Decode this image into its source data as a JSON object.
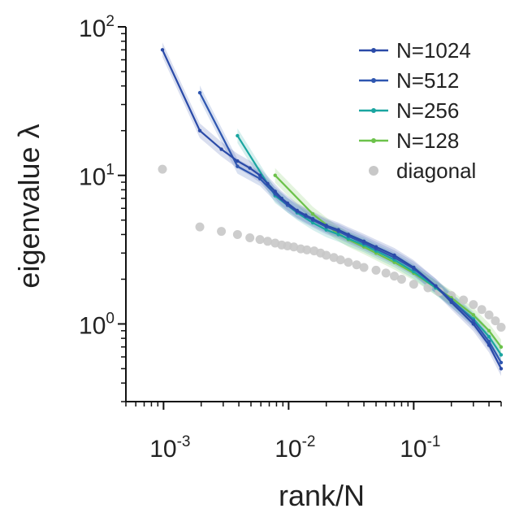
{
  "chart_data": {
    "type": "line",
    "xscale": "log",
    "yscale": "log",
    "xlabel": "rank/N",
    "ylabel": "eigenvalue λ",
    "xlim": [
      0.0005,
      0.5
    ],
    "ylim": [
      0.3,
      100
    ],
    "x_ticks": [
      {
        "value": 0.001,
        "base": "10",
        "exp": "-3"
      },
      {
        "value": 0.01,
        "base": "10",
        "exp": "-2"
      },
      {
        "value": 0.1,
        "base": "10",
        "exp": "-1"
      }
    ],
    "y_ticks": [
      {
        "value": 1,
        "base": "10",
        "exp": "0"
      },
      {
        "value": 10,
        "base": "10",
        "exp": "1"
      },
      {
        "value": 100,
        "base": "10",
        "exp": "2"
      }
    ],
    "legend_position": "top-right",
    "series": [
      {
        "name": "N=1024",
        "color": "#2a4aa8",
        "kind": "line",
        "points": [
          [
            0.00098,
            70
          ],
          [
            0.00195,
            20
          ],
          [
            0.0029,
            15
          ],
          [
            0.0039,
            12.5
          ],
          [
            0.0049,
            11.2
          ],
          [
            0.0059,
            10
          ],
          [
            0.0068,
            8.8
          ],
          [
            0.0078,
            7.8
          ],
          [
            0.0088,
            7
          ],
          [
            0.0098,
            6.5
          ],
          [
            0.0117,
            5.8
          ],
          [
            0.0137,
            5.4
          ],
          [
            0.0156,
            5.1
          ],
          [
            0.02,
            4.6
          ],
          [
            0.025,
            4.3
          ],
          [
            0.03,
            4.0
          ],
          [
            0.04,
            3.6
          ],
          [
            0.05,
            3.3
          ],
          [
            0.07,
            2.9
          ],
          [
            0.1,
            2.4
          ],
          [
            0.15,
            1.8
          ],
          [
            0.2,
            1.4
          ],
          [
            0.3,
            1.0
          ],
          [
            0.4,
            0.72
          ],
          [
            0.5,
            0.5
          ]
        ]
      },
      {
        "name": "N=512",
        "color": "#2e56b0",
        "kind": "line",
        "points": [
          [
            0.00195,
            36
          ],
          [
            0.0039,
            11.5
          ],
          [
            0.0059,
            9.5
          ],
          [
            0.0078,
            7.5
          ],
          [
            0.0098,
            6.3
          ],
          [
            0.0117,
            5.7
          ],
          [
            0.0137,
            5.3
          ],
          [
            0.0156,
            5.0
          ],
          [
            0.02,
            4.5
          ],
          [
            0.025,
            4.2
          ],
          [
            0.03,
            3.9
          ],
          [
            0.04,
            3.5
          ],
          [
            0.05,
            3.2
          ],
          [
            0.07,
            2.8
          ],
          [
            0.1,
            2.35
          ],
          [
            0.15,
            1.8
          ],
          [
            0.2,
            1.45
          ],
          [
            0.3,
            1.05
          ],
          [
            0.4,
            0.76
          ],
          [
            0.5,
            0.55
          ]
        ]
      },
      {
        "name": "N=256",
        "color": "#1aa5a0",
        "kind": "line",
        "points": [
          [
            0.0039,
            18.5
          ],
          [
            0.0078,
            7.3
          ],
          [
            0.0117,
            5.6
          ],
          [
            0.0156,
            4.8
          ],
          [
            0.02,
            4.3
          ],
          [
            0.025,
            4.0
          ],
          [
            0.03,
            3.75
          ],
          [
            0.04,
            3.4
          ],
          [
            0.05,
            3.1
          ],
          [
            0.07,
            2.7
          ],
          [
            0.1,
            2.25
          ],
          [
            0.15,
            1.75
          ],
          [
            0.2,
            1.45
          ],
          [
            0.3,
            1.08
          ],
          [
            0.4,
            0.82
          ],
          [
            0.5,
            0.62
          ]
        ]
      },
      {
        "name": "N=128",
        "color": "#6cc24a",
        "kind": "line",
        "points": [
          [
            0.0078,
            10
          ],
          [
            0.0156,
            5.5
          ],
          [
            0.0234,
            4.2
          ],
          [
            0.03,
            3.7
          ],
          [
            0.04,
            3.3
          ],
          [
            0.05,
            3.0
          ],
          [
            0.07,
            2.6
          ],
          [
            0.1,
            2.2
          ],
          [
            0.15,
            1.75
          ],
          [
            0.2,
            1.5
          ],
          [
            0.3,
            1.15
          ],
          [
            0.4,
            0.9
          ],
          [
            0.5,
            0.7
          ]
        ]
      },
      {
        "name": "diagonal",
        "color": "#c8c8c8",
        "kind": "scatter",
        "points": [
          [
            0.00098,
            11
          ],
          [
            0.00195,
            4.5
          ],
          [
            0.0029,
            4.2
          ],
          [
            0.0039,
            4.0
          ],
          [
            0.0049,
            3.8
          ],
          [
            0.0059,
            3.7
          ],
          [
            0.0068,
            3.6
          ],
          [
            0.0078,
            3.5
          ],
          [
            0.0088,
            3.4
          ],
          [
            0.0098,
            3.35
          ],
          [
            0.011,
            3.3
          ],
          [
            0.0125,
            3.2
          ],
          [
            0.014,
            3.15
          ],
          [
            0.016,
            3.1
          ],
          [
            0.018,
            3.0
          ],
          [
            0.02,
            2.9
          ],
          [
            0.023,
            2.8
          ],
          [
            0.026,
            2.7
          ],
          [
            0.03,
            2.6
          ],
          [
            0.035,
            2.5
          ],
          [
            0.04,
            2.4
          ],
          [
            0.05,
            2.3
          ],
          [
            0.06,
            2.2
          ],
          [
            0.07,
            2.1
          ],
          [
            0.08,
            2.0
          ],
          [
            0.1,
            1.85
          ],
          [
            0.13,
            1.75
          ],
          [
            0.16,
            1.65
          ],
          [
            0.2,
            1.55
          ],
          [
            0.25,
            1.45
          ],
          [
            0.3,
            1.35
          ],
          [
            0.35,
            1.25
          ],
          [
            0.4,
            1.15
          ],
          [
            0.45,
            1.05
          ],
          [
            0.5,
            0.95
          ]
        ]
      }
    ]
  }
}
